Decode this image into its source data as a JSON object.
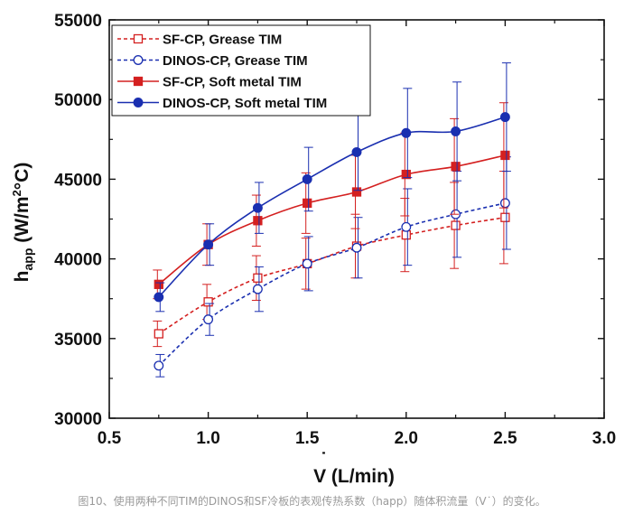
{
  "caption": "图10、使用两种不同TIM的DINOS和SF冷板的表观传热系数（happ）随体积流量（V˙）的变化。",
  "chart_data": {
    "type": "line",
    "x_title": {
      "main": "V",
      "rest": " (L/min)"
    },
    "y_title": {
      "main": "h",
      "sub": "app",
      "rest": " (W/m",
      "sup": "2",
      "end": "°C)"
    },
    "xlim": [
      0.5,
      3.0
    ],
    "ylim": [
      30000,
      55000
    ],
    "x_ticks": [
      0.5,
      1.0,
      1.5,
      2.0,
      2.5,
      3.0
    ],
    "x_tick_labels": [
      "0.5",
      "1.0",
      "1.5",
      "2.0",
      "2.5",
      "3.0"
    ],
    "y_ticks": [
      30000,
      35000,
      40000,
      45000,
      50000,
      55000
    ],
    "y_tick_labels": [
      "30000",
      "35000",
      "40000",
      "45000",
      "50000",
      "55000"
    ],
    "grid": false,
    "legend_position": "top-left",
    "x": [
      0.75,
      1.0,
      1.25,
      1.5,
      1.75,
      2.0,
      2.25,
      2.5
    ],
    "series": [
      {
        "name": "SF-CP, Grease TIM",
        "color": "#d42020",
        "dashed": true,
        "marker": "square",
        "filled": false,
        "values": [
          35300,
          37300,
          38800,
          39700,
          40800,
          41500,
          42100,
          42600
        ],
        "errors": [
          800,
          1100,
          1400,
          1600,
          2000,
          2300,
          2700,
          2900
        ]
      },
      {
        "name": "DINOS-CP, Grease TIM",
        "color": "#1a2fb0",
        "dashed": true,
        "marker": "circle",
        "filled": false,
        "values": [
          33300,
          36200,
          38100,
          39700,
          40700,
          42000,
          42800,
          43500
        ],
        "errors": [
          700,
          1000,
          1400,
          1700,
          1900,
          2400,
          2700,
          2900
        ]
      },
      {
        "name": "SF-CP, Soft metal TIM",
        "color": "#d42020",
        "dashed": false,
        "marker": "square",
        "filled": true,
        "values": [
          38400,
          40900,
          42400,
          43500,
          44200,
          45300,
          45800,
          46500
        ],
        "errors": [
          900,
          1300,
          1600,
          1900,
          2300,
          2600,
          3000,
          3300
        ]
      },
      {
        "name": "DINOS-CP, Soft metal TIM",
        "color": "#1a2fb0",
        "dashed": false,
        "marker": "circle",
        "filled": true,
        "values": [
          37600,
          40900,
          43200,
          45000,
          46700,
          47900,
          48000,
          48900
        ],
        "errors": [
          900,
          1300,
          1600,
          2000,
          2400,
          2800,
          3100,
          3400
        ]
      }
    ]
  }
}
